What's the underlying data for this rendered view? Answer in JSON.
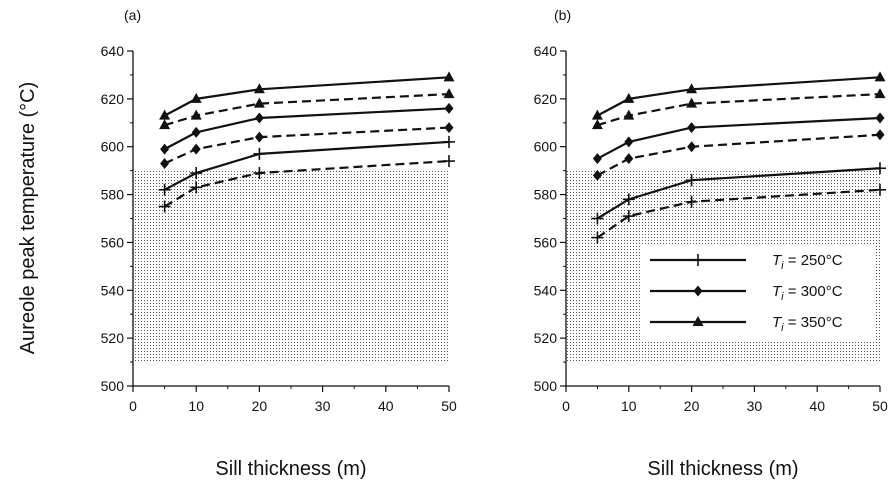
{
  "figure": {
    "ylabel": "Aureole peak temperature (°C)"
  },
  "legend": {
    "entries": [
      {
        "prefix": "T",
        "sub": "i",
        "text": " = 250°C",
        "marker": "plus-marker"
      },
      {
        "prefix": "T",
        "sub": "i",
        "text": " = 300°C",
        "marker": "diamond-marker"
      },
      {
        "prefix": "T",
        "sub": "i",
        "text": " = 350°C",
        "marker": "triangle-marker"
      }
    ]
  },
  "chart_data": [
    {
      "type": "line",
      "panel_label": "(a)",
      "xlabel": "Sill thickness (m)",
      "xlim": [
        0,
        50
      ],
      "ylim": [
        500,
        640
      ],
      "xticks": [
        "0",
        "10",
        "20",
        "30",
        "40",
        "50"
      ],
      "yticks": [
        "500",
        "520",
        "540",
        "560",
        "580",
        "600",
        "620",
        "640"
      ],
      "shaded_region": {
        "x": [
          0,
          50
        ],
        "y": [
          510,
          590
        ]
      },
      "x": [
        5,
        10,
        20,
        50
      ],
      "series": [
        {
          "marker": "plus",
          "style": "solid",
          "values": [
            582,
            589,
            597,
            602
          ]
        },
        {
          "marker": "plus",
          "style": "dashed",
          "values": [
            575,
            583,
            589,
            594
          ]
        },
        {
          "marker": "diamond",
          "style": "solid",
          "values": [
            599,
            606,
            612,
            616
          ]
        },
        {
          "marker": "diamond",
          "style": "dashed",
          "values": [
            593,
            599,
            604,
            608
          ]
        },
        {
          "marker": "triangle",
          "style": "solid",
          "values": [
            613,
            620,
            624,
            629
          ]
        },
        {
          "marker": "triangle",
          "style": "dashed",
          "values": [
            609,
            613,
            618,
            622
          ]
        }
      ]
    },
    {
      "type": "line",
      "panel_label": "(b)",
      "xlabel": "Sill thickness (m)",
      "xlim": [
        0,
        50
      ],
      "ylim": [
        500,
        640
      ],
      "xticks": [
        "0",
        "10",
        "20",
        "30",
        "40",
        "50"
      ],
      "yticks": [
        "500",
        "520",
        "540",
        "560",
        "580",
        "600",
        "620",
        "640"
      ],
      "shaded_region": {
        "x": [
          0,
          50
        ],
        "y": [
          510,
          590
        ]
      },
      "x": [
        5,
        10,
        20,
        50
      ],
      "series": [
        {
          "marker": "plus",
          "style": "solid",
          "values": [
            570,
            578,
            586,
            591
          ]
        },
        {
          "marker": "plus",
          "style": "dashed",
          "values": [
            562,
            571,
            577,
            582
          ]
        },
        {
          "marker": "diamond",
          "style": "solid",
          "values": [
            595,
            602,
            608,
            612
          ]
        },
        {
          "marker": "diamond",
          "style": "dashed",
          "values": [
            588,
            595,
            600,
            605
          ]
        },
        {
          "marker": "triangle",
          "style": "solid",
          "values": [
            613,
            620,
            624,
            629
          ]
        },
        {
          "marker": "triangle",
          "style": "dashed",
          "values": [
            609,
            613,
            618,
            622
          ]
        }
      ]
    }
  ]
}
